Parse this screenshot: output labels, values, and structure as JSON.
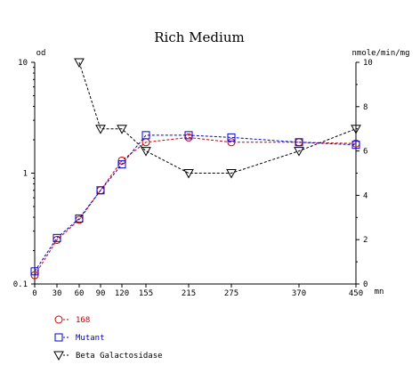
{
  "chart_data": {
    "type": "line",
    "title": "Rich Medium",
    "x_unit": "mn",
    "y_left_unit": "od",
    "y_right_unit": "nmole/min/mg",
    "x_ticks": [
      0,
      30,
      60,
      90,
      120,
      155,
      215,
      275,
      370,
      450
    ],
    "y_left": {
      "scale": "log",
      "range": [
        0.1,
        10
      ],
      "ticks": [
        0.1,
        1,
        10
      ],
      "tick_labels": [
        "0.1",
        "1",
        "10"
      ]
    },
    "y_right": {
      "scale": "linear",
      "range": [
        0,
        10
      ],
      "ticks": [
        0,
        2,
        4,
        6,
        8,
        10
      ],
      "tick_labels": [
        "0",
        "2",
        "4",
        "6",
        "8",
        "10"
      ]
    },
    "grid": false,
    "legend_position": "bottom-left",
    "series": [
      {
        "name": "168",
        "axis": "left",
        "marker": "circle",
        "color": "#cc0000",
        "x": [
          0,
          30,
          60,
          90,
          120,
          155,
          215,
          275,
          370,
          450
        ],
        "y": [
          0.12,
          0.25,
          0.38,
          0.7,
          1.3,
          1.9,
          2.1,
          1.9,
          1.9,
          1.85
        ]
      },
      {
        "name": "Mutant",
        "axis": "left",
        "marker": "square",
        "color": "#0000cc",
        "x": [
          0,
          30,
          60,
          90,
          120,
          155,
          215,
          275,
          370,
          450
        ],
        "y": [
          0.13,
          0.26,
          0.39,
          0.7,
          1.2,
          2.2,
          2.2,
          2.1,
          1.9,
          1.8
        ]
      },
      {
        "name": "Beta Galactosidase",
        "axis": "right",
        "marker": "triangle-down",
        "color": "#000000",
        "x": [
          60,
          90,
          120,
          155,
          215,
          275,
          370,
          450
        ],
        "y": [
          10,
          7,
          7,
          6,
          5,
          5,
          6,
          7
        ]
      }
    ]
  }
}
